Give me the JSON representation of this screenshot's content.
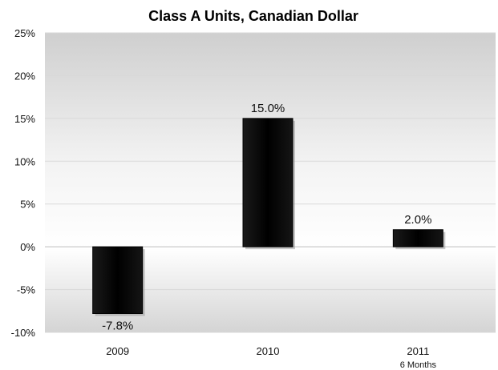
{
  "chart_data": {
    "type": "bar",
    "title": "Class A Units, Canadian Dollar",
    "xlabel": "",
    "ylabel": "",
    "categories": [
      "2009",
      "2010",
      "2011"
    ],
    "category_sublabels": [
      "",
      "",
      "6 Months"
    ],
    "values": [
      -7.8,
      15.0,
      2.0
    ],
    "data_labels": [
      "-7.8%",
      "15.0%",
      "2.0%"
    ],
    "ylim": [
      -10,
      25
    ],
    "yticks": [
      25,
      20,
      15,
      10,
      5,
      0,
      -5,
      -10
    ],
    "ytick_labels": [
      "25%",
      "20%",
      "15%",
      "10%",
      "5%",
      "0%",
      "-5%",
      "-10%"
    ],
    "grid": true,
    "legend": "none",
    "bar_color": "#000000",
    "plot_background": "gradient gray"
  }
}
